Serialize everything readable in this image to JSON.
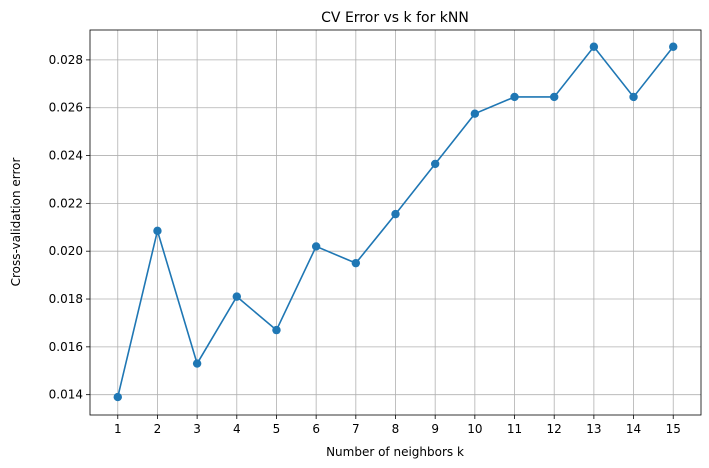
{
  "chart_data": {
    "type": "line",
    "title": "CV Error vs k for kNN",
    "xlabel": "Number of neighbors k",
    "ylabel": "Cross-validation error",
    "x": [
      1,
      2,
      3,
      4,
      5,
      6,
      7,
      8,
      9,
      10,
      11,
      12,
      13,
      14,
      15
    ],
    "series": [
      {
        "values": [
          0.0139,
          0.02085,
          0.0153,
          0.0181,
          0.0167,
          0.0202,
          0.0195,
          0.02155,
          0.02365,
          0.02575,
          0.02645,
          0.02645,
          0.02855,
          0.02645,
          0.02855
        ],
        "color": "#1f77b4",
        "marker": "circle"
      }
    ],
    "xlim": [
      0.3,
      15.7
    ],
    "ylim": [
      0.01315,
      0.02925
    ],
    "xticks": [
      "1",
      "2",
      "3",
      "4",
      "5",
      "6",
      "7",
      "8",
      "9",
      "10",
      "11",
      "12",
      "13",
      "14",
      "15"
    ],
    "yticks": [
      "0.014",
      "0.016",
      "0.018",
      "0.020",
      "0.022",
      "0.024",
      "0.026",
      "0.028"
    ],
    "grid": true
  }
}
